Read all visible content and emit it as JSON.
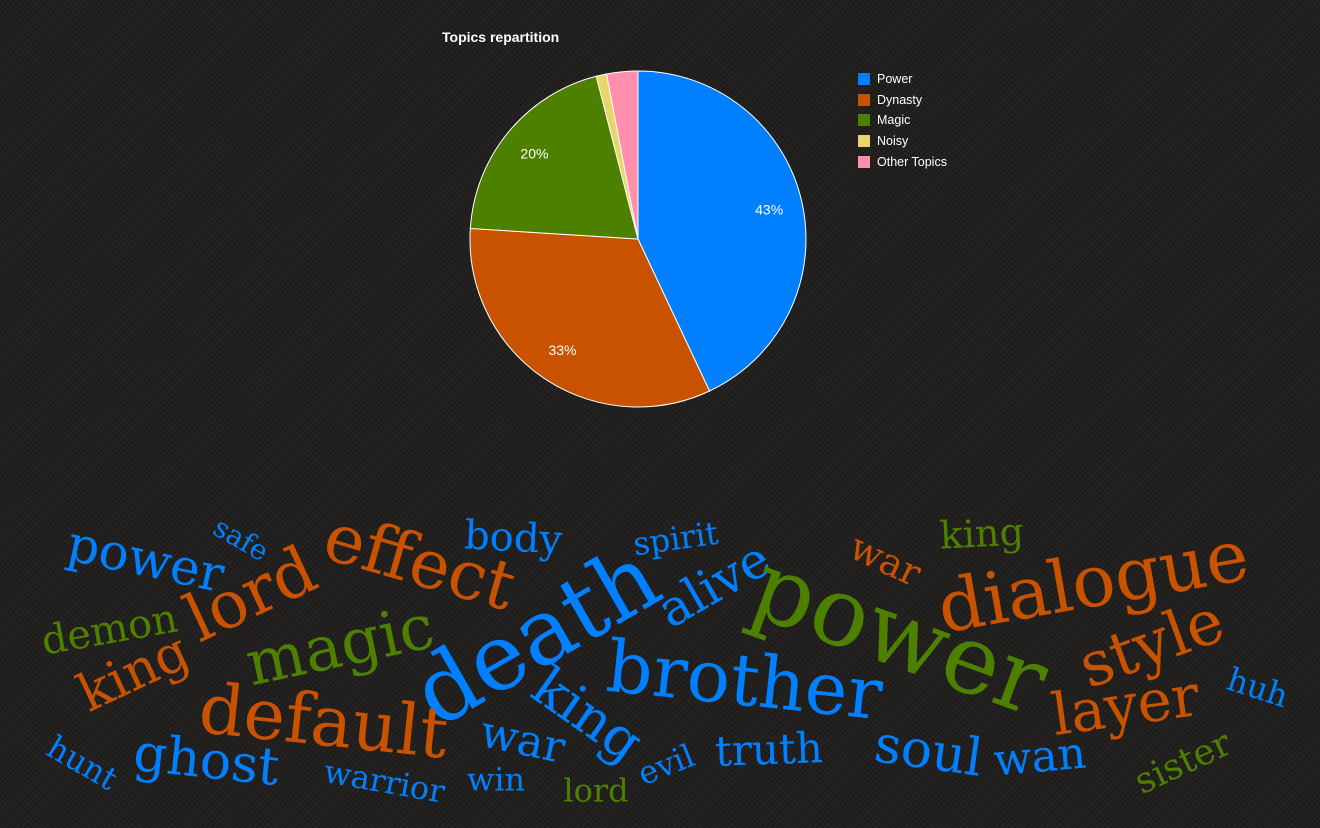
{
  "chart_data": [
    {
      "type": "pie",
      "title": "Topics repartition",
      "legend_position": "right",
      "slices": [
        {
          "label": "Power",
          "value": 43,
          "display": "43%",
          "color": "#0080ff"
        },
        {
          "label": "Dynasty",
          "value": 33,
          "display": "33%",
          "color": "#c85200"
        },
        {
          "label": "Magic",
          "value": 20,
          "display": "20%",
          "color": "#4e8000"
        },
        {
          "label": "Noisy",
          "value": 1,
          "display": "",
          "color": "#e8d66a"
        },
        {
          "label": "Other Topics",
          "value": 3,
          "display": "",
          "color": "#ff8fab"
        }
      ]
    },
    {
      "type": "wordcloud",
      "words": [
        {
          "text": "power",
          "topic": "Power"
        },
        {
          "text": "safe",
          "topic": "Power"
        },
        {
          "text": "lord",
          "topic": "Dynasty"
        },
        {
          "text": "effect",
          "topic": "Dynasty"
        },
        {
          "text": "body",
          "topic": "Power"
        },
        {
          "text": "spirit",
          "topic": "Power"
        },
        {
          "text": "war",
          "topic": "Dynasty"
        },
        {
          "text": "king",
          "topic": "Magic"
        },
        {
          "text": "dialogue",
          "topic": "Dynasty"
        },
        {
          "text": "demon",
          "topic": "Magic"
        },
        {
          "text": "king",
          "topic": "Dynasty"
        },
        {
          "text": "magic",
          "topic": "Magic"
        },
        {
          "text": "death",
          "topic": "Power"
        },
        {
          "text": "alive",
          "topic": "Power"
        },
        {
          "text": "power",
          "topic": "Magic"
        },
        {
          "text": "style",
          "topic": "Dynasty"
        },
        {
          "text": "brother",
          "topic": "Power"
        },
        {
          "text": "default",
          "topic": "Dynasty"
        },
        {
          "text": "king",
          "topic": "Power"
        },
        {
          "text": "layer",
          "topic": "Dynasty"
        },
        {
          "text": "huh",
          "topic": "Power"
        },
        {
          "text": "ghost",
          "topic": "Power"
        },
        {
          "text": "hunt",
          "topic": "Power"
        },
        {
          "text": "war",
          "topic": "Power"
        },
        {
          "text": "soul",
          "topic": "Power"
        },
        {
          "text": "wan",
          "topic": "Power"
        },
        {
          "text": "truth",
          "topic": "Power"
        },
        {
          "text": "evil",
          "topic": "Power"
        },
        {
          "text": "warrior",
          "topic": "Power"
        },
        {
          "text": "win",
          "topic": "Power"
        },
        {
          "text": "lord",
          "topic": "Magic"
        },
        {
          "text": "sister",
          "topic": "Magic"
        }
      ]
    }
  ]
}
